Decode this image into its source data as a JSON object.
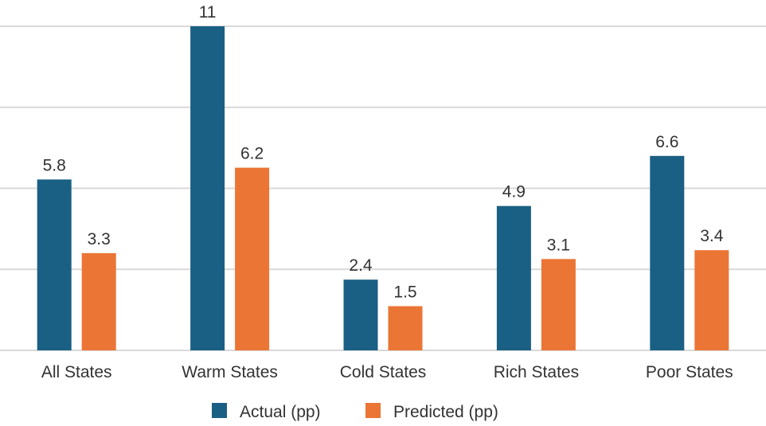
{
  "chart_data": {
    "type": "bar",
    "title": "",
    "xlabel": "",
    "ylabel": "",
    "categories": [
      "All States",
      "Warm States",
      "Cold States",
      "Rich States",
      "Poor States"
    ],
    "series": [
      {
        "name": "Actual (pp)",
        "color": "#1a5f84",
        "values": [
          5.8,
          11,
          2.4,
          4.9,
          6.6
        ],
        "labels": [
          "5.8",
          "11",
          "2.4",
          "4.9",
          "6.6"
        ]
      },
      {
        "name": "Predicted (pp)",
        "color": "#eb7535",
        "values": [
          3.3,
          6.2,
          1.5,
          3.1,
          3.4
        ],
        "labels": [
          "3.3",
          "6.2",
          "1.5",
          "3.1",
          "3.4"
        ]
      }
    ],
    "ylim": [
      0,
      11
    ],
    "y_gridlines": [
      0,
      2.75,
      5.5,
      8.25,
      11
    ],
    "grid": true,
    "legend": "bottom-center"
  }
}
